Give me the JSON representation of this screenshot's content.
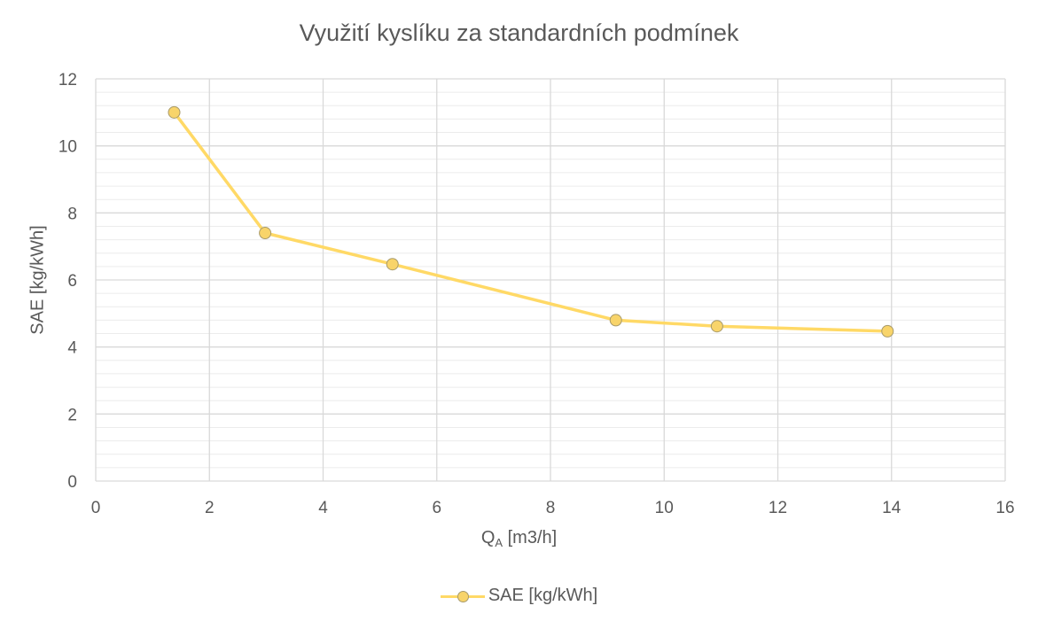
{
  "chart_data": {
    "type": "line",
    "title": "Využití kyslíku za standardních podmínek",
    "xlabel_main": "Q",
    "xlabel_sub": "A",
    "xlabel_unit": " [m3/h]",
    "ylabel": "SAE [kg/kWh]",
    "xlim": [
      0,
      16
    ],
    "ylim": [
      0,
      12
    ],
    "xticks": [
      0,
      2,
      4,
      6,
      8,
      10,
      12,
      14,
      16
    ],
    "yticks": [
      0,
      2,
      4,
      6,
      8,
      10,
      12
    ],
    "grid": true,
    "legend_position": "bottom",
    "series": [
      {
        "name": "SAE [kg/kWh]",
        "color": "#ffd966",
        "marker_color": "#f8d46a",
        "x": [
          1.38,
          2.98,
          5.22,
          9.15,
          10.93,
          13.93
        ],
        "y": [
          11.0,
          7.4,
          6.47,
          4.8,
          4.62,
          4.47
        ]
      }
    ]
  }
}
